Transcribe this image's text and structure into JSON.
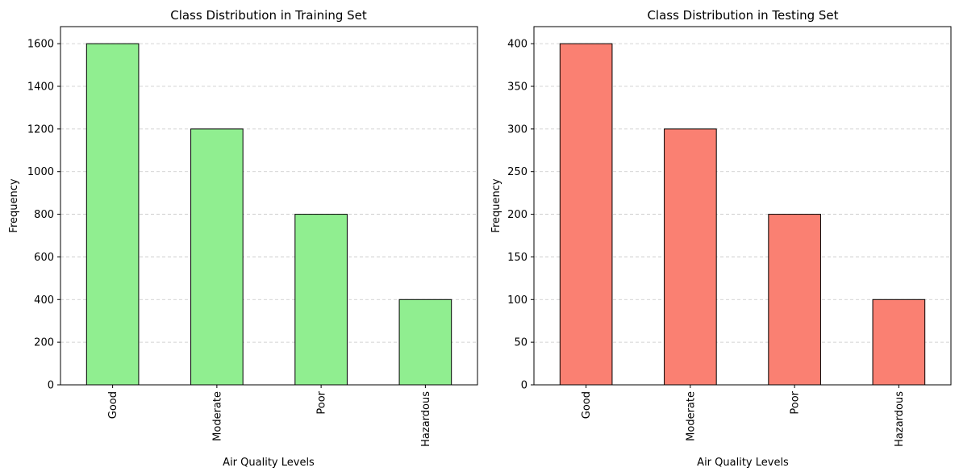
{
  "chart_data": [
    {
      "type": "bar",
      "title": "Class Distribution in Training Set",
      "xlabel": "Air Quality Levels",
      "ylabel": "Frequency",
      "categories": [
        "Good",
        "Moderate",
        "Poor",
        "Hazardous"
      ],
      "values": [
        1600,
        1200,
        800,
        400
      ],
      "ylim": [
        0,
        1680
      ],
      "yticks": [
        0,
        200,
        400,
        600,
        800,
        1000,
        1200,
        1400,
        1600
      ],
      "grid": "y",
      "color": "#90ee90",
      "edge_color": "#000000"
    },
    {
      "type": "bar",
      "title": "Class Distribution in Testing Set",
      "xlabel": "Air Quality Levels",
      "ylabel": "Frequency",
      "categories": [
        "Good",
        "Moderate",
        "Poor",
        "Hazardous"
      ],
      "values": [
        400,
        300,
        200,
        100
      ],
      "ylim": [
        0,
        420
      ],
      "yticks": [
        0,
        50,
        100,
        150,
        200,
        250,
        300,
        350,
        400
      ],
      "grid": "y",
      "color": "#fa8072",
      "edge_color": "#000000"
    }
  ]
}
